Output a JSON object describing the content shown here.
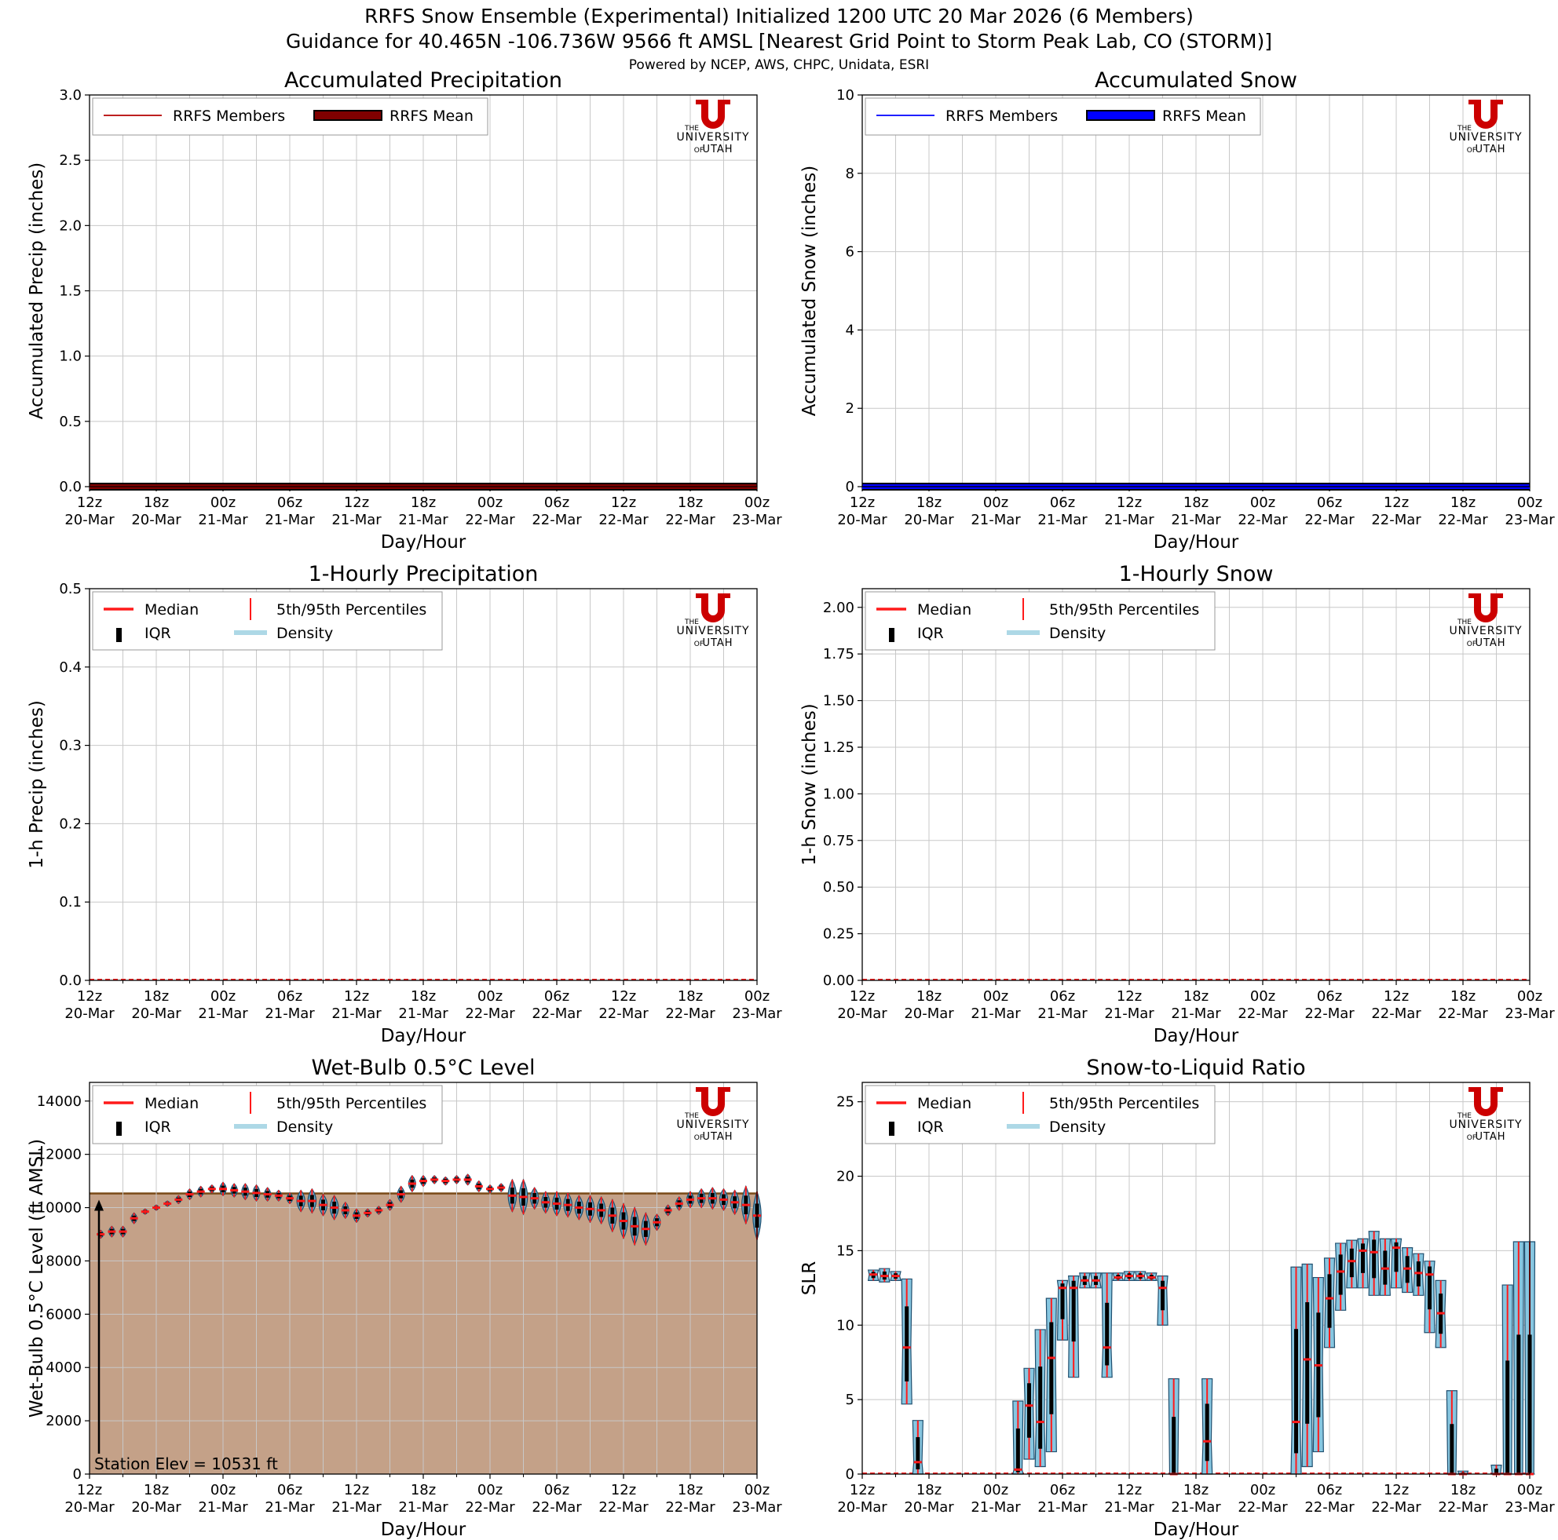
{
  "header": {
    "title_line1": "RRFS Snow Ensemble (Experimental) Initialized 1200 UTC 20 Mar 2026 (6 Members)",
    "title_line2": "Guidance for 40.465N -106.736W 9566 ft AMSL [Nearest Grid Point to Storm Peak Lab, CO (STORM)]",
    "credits": "Powered by NCEP, AWS, CHPC, Unidata, ESRI"
  },
  "logo": {
    "the": "THE",
    "university": "UNIVERSITY",
    "of": "OF",
    "utah": "UTAH"
  },
  "x_axis": {
    "label": "Day/Hour",
    "tick_labels": [
      [
        "12z",
        "20-Mar"
      ],
      [
        "18z",
        "20-Mar"
      ],
      [
        "00z",
        "21-Mar"
      ],
      [
        "06z",
        "21-Mar"
      ],
      [
        "12z",
        "21-Mar"
      ],
      [
        "18z",
        "21-Mar"
      ],
      [
        "00z",
        "22-Mar"
      ],
      [
        "06z",
        "22-Mar"
      ],
      [
        "12z",
        "22-Mar"
      ],
      [
        "18z",
        "22-Mar"
      ],
      [
        "00z",
        "23-Mar"
      ]
    ],
    "forecast_hours_range": [
      0,
      60
    ]
  },
  "chart_data": [
    {
      "id": "acc-precip",
      "type": "line",
      "title": "Accumulated Precipitation",
      "xlabel": "Day/Hour",
      "ylabel": "Accumulated Precip (inches)",
      "ylim": [
        0,
        3.0
      ],
      "yticks": [
        "0.0",
        "0.5",
        "1.0",
        "1.5",
        "2.0",
        "2.5",
        "3.0"
      ],
      "grid": true,
      "legend": "top-left",
      "legend_entries": [
        {
          "label": "RRFS Members",
          "kind": "line",
          "color": "#b40000"
        },
        {
          "label": "RRFS Mean",
          "kind": "thick",
          "color": "#800000"
        }
      ],
      "series": [
        {
          "name": "RRFS Members",
          "color": "#cc0000",
          "x": [
            0,
            60
          ],
          "y": [
            0.0,
            0.0
          ]
        },
        {
          "name": "RRFS Mean",
          "color": "#800000",
          "x": [
            0,
            60
          ],
          "y": [
            0.0,
            0.0
          ]
        }
      ]
    },
    {
      "id": "acc-snow",
      "type": "line",
      "title": "Accumulated Snow",
      "xlabel": "Day/Hour",
      "ylabel": "Accumulated Snow (inches)",
      "ylim": [
        0,
        10
      ],
      "yticks": [
        "0",
        "2",
        "4",
        "6",
        "8",
        "10"
      ],
      "grid": true,
      "legend": "top-left",
      "legend_entries": [
        {
          "label": "RRFS Members",
          "kind": "line",
          "color": "#0000ff"
        },
        {
          "label": "RRFS Mean",
          "kind": "thick",
          "color": "#0000ff"
        }
      ],
      "series": [
        {
          "name": "RRFS Members",
          "color": "#0000ff",
          "x": [
            0,
            60
          ],
          "y": [
            0.0,
            0.0
          ]
        },
        {
          "name": "RRFS Mean",
          "color": "#0000ff",
          "x": [
            0,
            60
          ],
          "y": [
            0.0,
            0.0
          ]
        }
      ]
    },
    {
      "id": "hourly-precip",
      "type": "line",
      "title": "1-Hourly Precipitation",
      "xlabel": "Day/Hour",
      "ylabel": "1-h Precip (inches)",
      "ylim": [
        0,
        0.5
      ],
      "yticks": [
        "0.0",
        "0.1",
        "0.2",
        "0.3",
        "0.4",
        "0.5"
      ],
      "grid": true,
      "legend": "top-left",
      "legend_entries": [
        {
          "label": "Median",
          "kind": "median"
        },
        {
          "label": "5th/95th Percentiles",
          "kind": "pct"
        },
        {
          "label": "IQR",
          "kind": "iqr"
        },
        {
          "label": "Density",
          "kind": "density"
        }
      ],
      "series": [
        {
          "name": "Median",
          "x": [
            0,
            60
          ],
          "y": [
            0.0,
            0.0
          ]
        }
      ]
    },
    {
      "id": "hourly-snow",
      "type": "line",
      "title": "1-Hourly Snow",
      "xlabel": "Day/Hour",
      "ylabel": "1-h Snow (inches)",
      "ylim": [
        0,
        2.1
      ],
      "yticks": [
        "0.00",
        "0.25",
        "0.50",
        "0.75",
        "1.00",
        "1.25",
        "1.50",
        "1.75",
        "2.00"
      ],
      "ytick_values": [
        0,
        0.25,
        0.5,
        0.75,
        1.0,
        1.25,
        1.5,
        1.75,
        2.0
      ],
      "grid": true,
      "legend": "top-left",
      "legend_entries": [
        {
          "label": "Median",
          "kind": "median"
        },
        {
          "label": "5th/95th Percentiles",
          "kind": "pct"
        },
        {
          "label": "IQR",
          "kind": "iqr"
        },
        {
          "label": "Density",
          "kind": "density"
        }
      ],
      "series": [
        {
          "name": "Median",
          "x": [
            0,
            60
          ],
          "y": [
            0.0,
            0.0
          ]
        }
      ]
    },
    {
      "id": "wetbulb",
      "type": "scatter",
      "title": "Wet-Bulb 0.5°C Level",
      "xlabel": "Day/Hour",
      "ylabel": "Wet-Bulb 0.5°C Level (ft AMSL)",
      "ylim": [
        0,
        14700
      ],
      "yticks": [
        "0",
        "2000",
        "4000",
        "6000",
        "8000",
        "10000",
        "12000",
        "14000"
      ],
      "ytick_values": [
        0,
        2000,
        4000,
        6000,
        8000,
        10000,
        12000,
        14000
      ],
      "grid": true,
      "legend": "top-left",
      "legend_entries": [
        {
          "label": "Median",
          "kind": "median"
        },
        {
          "label": "5th/95th Percentiles",
          "kind": "pct"
        },
        {
          "label": "IQR",
          "kind": "iqr"
        },
        {
          "label": "Density",
          "kind": "density"
        }
      ],
      "station_elev": 10531,
      "station_label": "Station Elev = 10531 ft",
      "terrain_color": "#c4a188",
      "x": [
        1,
        2,
        3,
        4,
        5,
        6,
        7,
        8,
        9,
        10,
        11,
        12,
        13,
        14,
        15,
        16,
        17,
        18,
        19,
        20,
        21,
        22,
        23,
        24,
        25,
        26,
        27,
        28,
        29,
        30,
        31,
        32,
        33,
        34,
        35,
        36,
        37,
        38,
        39,
        40,
        41,
        42,
        43,
        44,
        45,
        46,
        47,
        48,
        49,
        50,
        51,
        52,
        53,
        54,
        55,
        56,
        57,
        58,
        59,
        60
      ],
      "median": [
        9000,
        9100,
        9100,
        9600,
        9850,
        10000,
        10150,
        10300,
        10500,
        10600,
        10700,
        10700,
        10650,
        10600,
        10550,
        10500,
        10450,
        10350,
        10250,
        10250,
        10100,
        10000,
        9900,
        9700,
        9800,
        9900,
        10100,
        10500,
        10900,
        11000,
        11050,
        11000,
        11050,
        11050,
        10800,
        10700,
        10750,
        10450,
        10400,
        10350,
        10200,
        10150,
        10100,
        10000,
        9950,
        9900,
        9700,
        9500,
        9300,
        9200,
        9450,
        9900,
        10150,
        10300,
        10350,
        10350,
        10300,
        10200,
        10100,
        9700
      ],
      "spread": [
        150,
        200,
        200,
        200,
        100,
        100,
        100,
        150,
        200,
        200,
        150,
        250,
        250,
        300,
        300,
        250,
        200,
        200,
        400,
        450,
        400,
        450,
        300,
        250,
        150,
        150,
        200,
        300,
        300,
        200,
        150,
        150,
        150,
        200,
        200,
        150,
        150,
        600,
        650,
        400,
        400,
        450,
        450,
        450,
        500,
        500,
        600,
        650,
        700,
        600,
        300,
        200,
        250,
        300,
        350,
        400,
        400,
        450,
        700,
        900
      ]
    },
    {
      "id": "slr",
      "type": "scatter",
      "title": "Snow-to-Liquid Ratio",
      "xlabel": "Day/Hour",
      "ylabel": "SLR",
      "ylim": [
        0,
        26.3
      ],
      "yticks": [
        "0",
        "5",
        "10",
        "15",
        "20",
        "25"
      ],
      "ytick_values": [
        0,
        5,
        10,
        15,
        20,
        25
      ],
      "grid": true,
      "legend": "top-left",
      "legend_entries": [
        {
          "label": "Median",
          "kind": "median"
        },
        {
          "label": "5th/95th Percentiles",
          "kind": "pct"
        },
        {
          "label": "IQR",
          "kind": "iqr"
        },
        {
          "label": "Density",
          "kind": "density"
        }
      ],
      "x": [
        1,
        2,
        3,
        4,
        5,
        6,
        7,
        8,
        9,
        10,
        11,
        12,
        13,
        14,
        15,
        16,
        17,
        18,
        19,
        20,
        21,
        22,
        23,
        24,
        25,
        26,
        27,
        28,
        29,
        30,
        31,
        32,
        33,
        34,
        35,
        36,
        37,
        38,
        39,
        40,
        41,
        42,
        43,
        44,
        45,
        46,
        47,
        48,
        49,
        50,
        51,
        52,
        53,
        54,
        55,
        56,
        57,
        58,
        59,
        60
      ],
      "median": [
        13.4,
        13.3,
        13.3,
        8.5,
        0.8,
        0,
        0,
        0,
        0,
        0,
        0,
        0,
        0,
        0.3,
        4.6,
        3.5,
        7.8,
        12.5,
        12.5,
        13.0,
        13.0,
        8.5,
        13.2,
        13.3,
        13.3,
        13.2,
        12.5,
        0,
        0,
        0,
        2.2,
        0,
        0,
        0,
        0,
        0,
        0,
        0,
        3.5,
        7.7,
        7.3,
        11.8,
        13.6,
        14.3,
        15.0,
        14.9,
        13.8,
        15.2,
        13.8,
        13.5,
        13.4,
        10.8,
        0,
        0,
        0,
        0,
        0,
        0,
        0,
        0
      ],
      "lo": [
        13.0,
        12.9,
        13.0,
        4.7,
        0,
        0,
        0,
        0,
        0,
        0,
        0,
        0,
        0,
        0,
        1.0,
        0.5,
        1.5,
        9.0,
        6.5,
        12.5,
        12.5,
        6.5,
        13.0,
        13.0,
        13.0,
        13.0,
        10.0,
        0,
        0,
        0,
        0,
        0,
        0,
        0,
        0,
        0,
        0,
        0,
        0,
        0.5,
        1.5,
        8.5,
        11.0,
        12.5,
        12.5,
        12.0,
        12.0,
        12.5,
        12.2,
        12.0,
        9.5,
        8.5,
        0,
        0,
        0,
        0,
        0,
        0,
        0,
        0
      ],
      "hi": [
        13.7,
        13.8,
        13.6,
        13.1,
        3.6,
        0,
        0,
        0,
        0,
        0,
        0,
        0,
        0,
        4.9,
        7.1,
        9.7,
        11.8,
        13.0,
        13.3,
        13.5,
        13.5,
        13.5,
        13.5,
        13.6,
        13.6,
        13.5,
        13.3,
        6.4,
        0,
        0,
        6.4,
        0,
        0,
        0,
        0,
        0,
        0,
        0,
        13.9,
        14.1,
        13.2,
        14.5,
        15.5,
        15.7,
        15.8,
        16.3,
        15.8,
        15.8,
        15.2,
        14.8,
        14.3,
        13.0,
        5.6,
        0.2,
        0,
        0,
        0.6,
        12.7,
        15.6,
        15.6
      ]
    }
  ]
}
